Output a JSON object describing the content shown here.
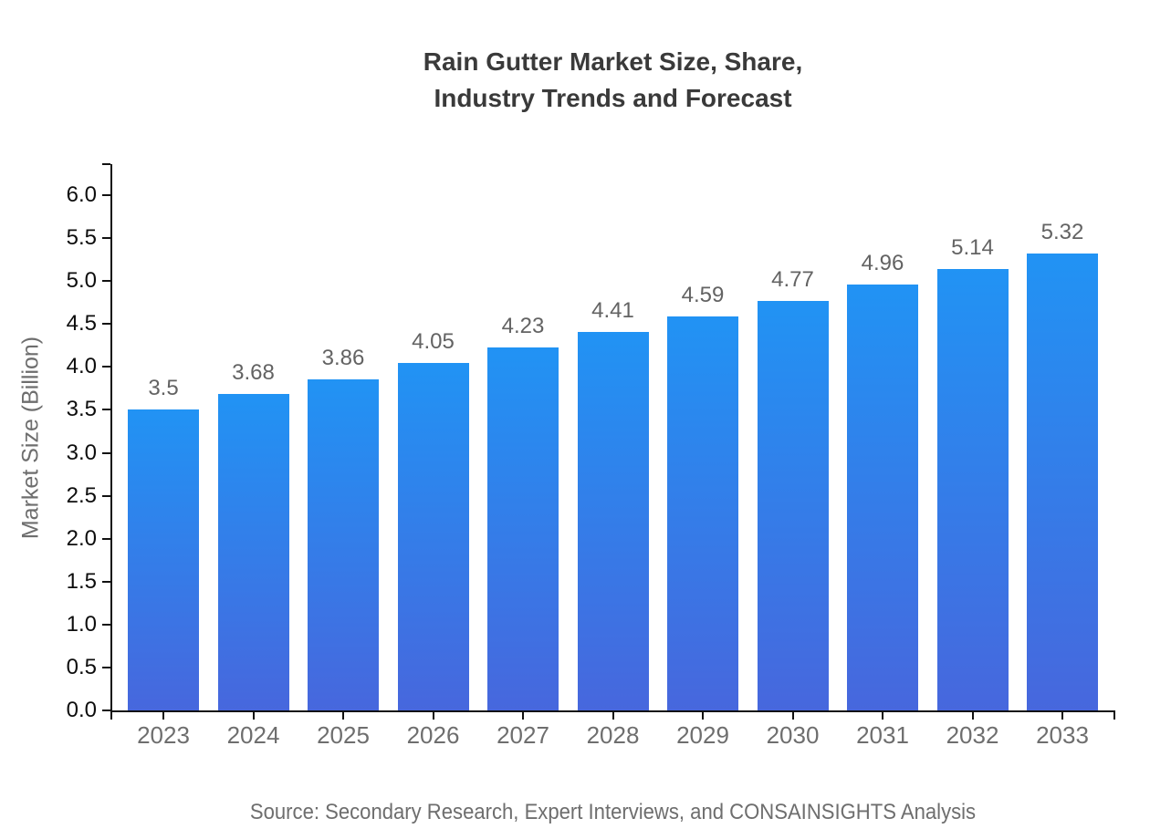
{
  "title": {
    "line1": "Rain Gutter Market Size, Share,",
    "line2": "Industry Trends and Forecast"
  },
  "source": "Source: Secondary Research, Expert Interviews, and CONSAINSIGHTS Analysis",
  "chart_data": {
    "type": "bar",
    "title": "Rain Gutter Market Size, Share, Industry Trends and Forecast",
    "categories": [
      "2023",
      "2024",
      "2025",
      "2026",
      "2027",
      "2028",
      "2029",
      "2030",
      "2031",
      "2032",
      "2033"
    ],
    "values": [
      3.5,
      3.68,
      3.86,
      4.05,
      4.23,
      4.41,
      4.59,
      4.77,
      4.96,
      5.14,
      5.32
    ],
    "value_labels": [
      "3.5",
      "3.68",
      "3.86",
      "4.05",
      "4.23",
      "4.41",
      "4.59",
      "4.77",
      "4.96",
      "5.14",
      "5.32"
    ],
    "xlabel": "",
    "ylabel": "Market Size (Billion)",
    "ylim": [
      0.0,
      6.0
    ],
    "ytick_step": 0.5,
    "yticks": [
      "0.0",
      "0.5",
      "1.0",
      "1.5",
      "2.0",
      "2.5",
      "3.0",
      "3.5",
      "4.0",
      "4.5",
      "5.0",
      "5.5",
      "6.0"
    ],
    "grid": false,
    "legend": "none",
    "colors": {
      "bar_gradient_top": "#2193f4",
      "bar_gradient_bottom": "#4767dd",
      "axis": "#111111",
      "tick_label": "#0d0d0d",
      "category_label": "#6e6e6e",
      "value_label": "#636363",
      "title": "#3a3a3a",
      "source": "#6e6e6e"
    }
  }
}
